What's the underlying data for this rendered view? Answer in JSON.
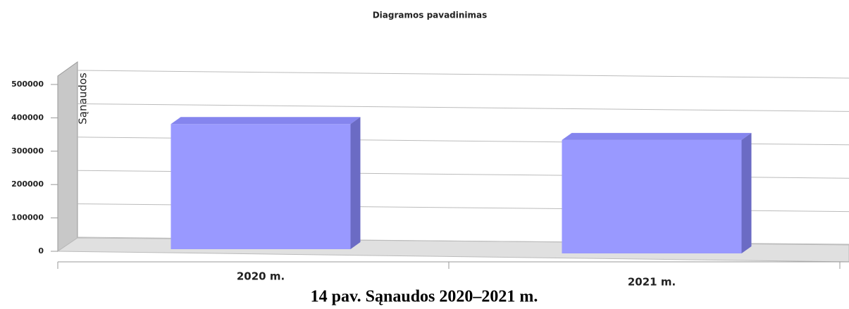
{
  "chart_data": {
    "type": "bar3d",
    "title": "Diagramos pavadinimas",
    "y_label": "Sąnaudos",
    "categories": [
      "2020 m.",
      "2021 m."
    ],
    "values": [
      375000,
      340000
    ],
    "color": "#9999ff",
    "ylim": [
      0,
      500000
    ],
    "yticks": [
      0,
      100000,
      200000,
      300000,
      400000,
      500000
    ],
    "grid": true,
    "caption": "14 pav. Sąnaudos 2020–2021 m."
  }
}
